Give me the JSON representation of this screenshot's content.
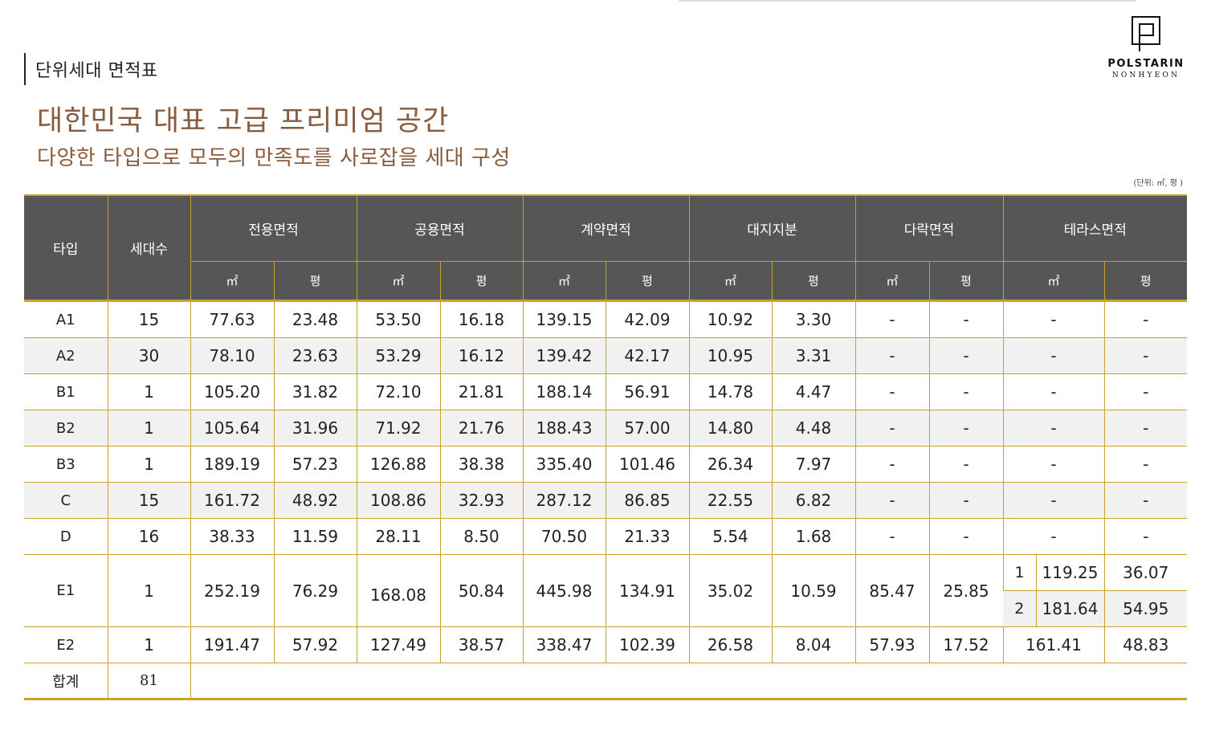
{
  "page": {
    "section_title": "단위세대 면적표",
    "headline": "대한민국 대표 고급 프리미엄 공간",
    "subheadline": "다양한 타입으로 모두의 만족도를 사로잡을 세대 구성",
    "unit_note": "(단위: ㎡, 평 )"
  },
  "logo": {
    "name": "POLSTARIN",
    "sub": "NONHYEON"
  },
  "table": {
    "headers": {
      "type": "타입",
      "households": "세대수",
      "exclusive": "전용면적",
      "common": "공용면적",
      "contract": "계약면적",
      "land": "대지지분",
      "attic": "다락면적",
      "terrace": "테라스면적",
      "sqm": "㎡",
      "pyeong": "평"
    },
    "rows": [
      {
        "type": "A1",
        "households": "15",
        "ex_m": "77.63",
        "ex_p": "23.48",
        "co_m": "53.50",
        "co_p": "16.18",
        "ct_m": "139.15",
        "ct_p": "42.09",
        "ld_m": "10.92",
        "ld_p": "3.30",
        "at_m": "-",
        "at_p": "-",
        "te_m": "-",
        "te_p": "-"
      },
      {
        "type": "A2",
        "households": "30",
        "ex_m": "78.10",
        "ex_p": "23.63",
        "co_m": "53.29",
        "co_p": "16.12",
        "ct_m": "139.42",
        "ct_p": "42.17",
        "ld_m": "10.95",
        "ld_p": "3.31",
        "at_m": "-",
        "at_p": "-",
        "te_m": "-",
        "te_p": "-"
      },
      {
        "type": "B1",
        "households": "1",
        "ex_m": "105.20",
        "ex_p": "31.82",
        "co_m": "72.10",
        "co_p": "21.81",
        "ct_m": "188.14",
        "ct_p": "56.91",
        "ld_m": "14.78",
        "ld_p": "4.47",
        "at_m": "-",
        "at_p": "-",
        "te_m": "-",
        "te_p": "-"
      },
      {
        "type": "B2",
        "households": "1",
        "ex_m": "105.64",
        "ex_p": "31.96",
        "co_m": "71.92",
        "co_p": "21.76",
        "ct_m": "188.43",
        "ct_p": "57.00",
        "ld_m": "14.80",
        "ld_p": "4.48",
        "at_m": "-",
        "at_p": "-",
        "te_m": "-",
        "te_p": "-"
      },
      {
        "type": "B3",
        "households": "1",
        "ex_m": "189.19",
        "ex_p": "57.23",
        "co_m": "126.88",
        "co_p": "38.38",
        "ct_m": "335.40",
        "ct_p": "101.46",
        "ld_m": "26.34",
        "ld_p": "7.97",
        "at_m": "-",
        "at_p": "-",
        "te_m": "-",
        "te_p": "-"
      },
      {
        "type": "C",
        "households": "15",
        "ex_m": "161.72",
        "ex_p": "48.92",
        "co_m": "108.86",
        "co_p": "32.93",
        "ct_m": "287.12",
        "ct_p": "86.85",
        "ld_m": "22.55",
        "ld_p": "6.82",
        "at_m": "-",
        "at_p": "-",
        "te_m": "-",
        "te_p": "-"
      },
      {
        "type": "D",
        "households": "16",
        "ex_m": "38.33",
        "ex_p": "11.59",
        "co_m": "28.11",
        "co_p": "8.50",
        "ct_m": "70.50",
        "ct_p": "21.33",
        "ld_m": "5.54",
        "ld_p": "1.68",
        "at_m": "-",
        "at_p": "-",
        "te_m": "-",
        "te_p": "-"
      }
    ],
    "e1": {
      "type": "E1",
      "households": "1",
      "ex_m": "252.19",
      "ex_p": "76.29",
      "co_m": "168.08",
      "co_p": "50.84",
      "ct_m": "445.98",
      "ct_p": "134.91",
      "ld_m": "35.02",
      "ld_p": "10.59",
      "at_m": "85.47",
      "at_p": "25.85",
      "terraces": [
        {
          "idx": "1",
          "m": "119.25",
          "p": "36.07"
        },
        {
          "idx": "2",
          "m": "181.64",
          "p": "54.95"
        }
      ]
    },
    "e2": {
      "type": "E2",
      "households": "1",
      "ex_m": "191.47",
      "ex_p": "57.92",
      "co_m": "127.49",
      "co_p": "38.57",
      "ct_m": "338.47",
      "ct_p": "102.39",
      "ld_m": "26.58",
      "ld_p": "8.04",
      "at_m": "57.93",
      "at_p": "17.52",
      "te_m": "161.41",
      "te_p": "48.83"
    },
    "total": {
      "label": "합계",
      "households": "81"
    }
  }
}
